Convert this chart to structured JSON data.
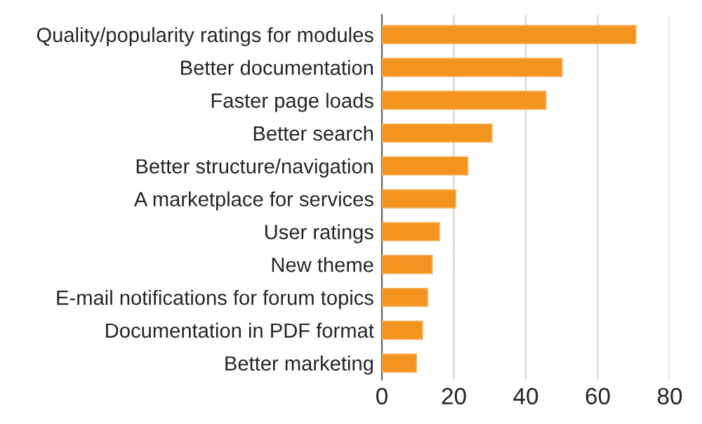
{
  "chart_data": {
    "type": "bar",
    "orientation": "horizontal",
    "categories": [
      "Quality/popularity ratings for modules",
      "Better documentation",
      "Faster page loads",
      "Better search",
      "Better structure/navigation",
      "A marketplace for services",
      "User ratings",
      "New theme",
      "E-mail notifications for forum topics",
      "Documentation in PDF format",
      "Better marketing"
    ],
    "values": [
      70.6,
      50.1,
      45.6,
      30.6,
      23.9,
      20.5,
      16.0,
      14.0,
      12.7,
      11.3,
      9.6
    ],
    "color": "#f39420",
    "xlim": [
      0,
      80
    ],
    "xticks": [
      0,
      20,
      40,
      60,
      80
    ],
    "grid": "x"
  }
}
